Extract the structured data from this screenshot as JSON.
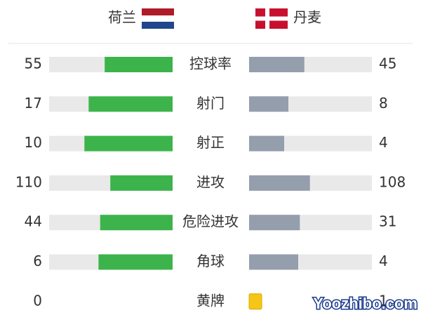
{
  "header": {
    "home": "荷兰",
    "away": "丹麦"
  },
  "rows": [
    {
      "label": "控球率",
      "home": 55,
      "away": 45
    },
    {
      "label": "射门",
      "home": 17,
      "away": 8
    },
    {
      "label": "射正",
      "home": 10,
      "away": 4
    },
    {
      "label": "进攻",
      "home": 110,
      "away": 108
    },
    {
      "label": "危险进攻",
      "home": 44,
      "away": 31
    },
    {
      "label": "角球",
      "home": 6,
      "away": 4
    },
    {
      "label": "黄牌",
      "home": 0,
      "away": 1,
      "display": "card"
    }
  ],
  "colors": {
    "home": "#3cb44b",
    "away": "#959ead",
    "track": "#e9e9e9",
    "card": "#f5c518"
  },
  "watermark": "Yoozhibo.com"
}
